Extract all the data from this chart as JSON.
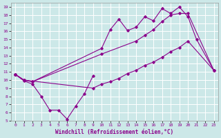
{
  "xlabel": "Windchill (Refroidissement éolien,°C)",
  "xlim": [
    -0.5,
    23.5
  ],
  "ylim": [
    5,
    19.5
  ],
  "xticks": [
    0,
    1,
    2,
    3,
    4,
    5,
    6,
    7,
    8,
    9,
    10,
    11,
    12,
    13,
    14,
    15,
    16,
    17,
    18,
    19,
    20,
    21,
    22,
    23
  ],
  "yticks": [
    5,
    6,
    7,
    8,
    9,
    10,
    11,
    12,
    13,
    14,
    15,
    16,
    17,
    18,
    19
  ],
  "bg_color": "#cce8e8",
  "grid_color": "#ffffff",
  "line_color": "#8b008b",
  "line1_x": [
    0,
    1,
    2,
    3,
    4,
    5,
    6,
    7,
    8,
    9
  ],
  "line1_y": [
    10.7,
    9.9,
    9.5,
    8.0,
    6.3,
    6.3,
    5.2,
    6.8,
    8.3,
    10.5
  ],
  "line2_x": [
    0,
    1,
    2,
    10,
    11,
    12,
    13,
    14,
    15,
    16,
    17,
    18,
    19,
    20,
    21,
    23
  ],
  "line2_y": [
    10.7,
    10.0,
    9.8,
    13.9,
    16.2,
    17.5,
    16.1,
    16.5,
    17.8,
    17.3,
    18.8,
    18.2,
    19.0,
    17.8,
    15.0,
    11.2
  ],
  "line3_x": [
    0,
    1,
    2,
    10,
    14,
    15,
    16,
    17,
    18,
    19,
    20,
    23
  ],
  "line3_y": [
    10.7,
    10.0,
    9.8,
    13.2,
    14.8,
    15.5,
    16.2,
    17.2,
    18.0,
    18.2,
    18.2,
    11.2
  ],
  "line4_x": [
    0,
    1,
    9,
    10,
    11,
    12,
    13,
    14,
    15,
    16,
    17,
    18,
    19,
    20,
    23
  ],
  "line4_y": [
    10.7,
    10.0,
    9.0,
    9.5,
    9.8,
    10.2,
    10.8,
    11.2,
    11.8,
    12.2,
    12.8,
    13.5,
    14.0,
    14.8,
    11.2
  ]
}
